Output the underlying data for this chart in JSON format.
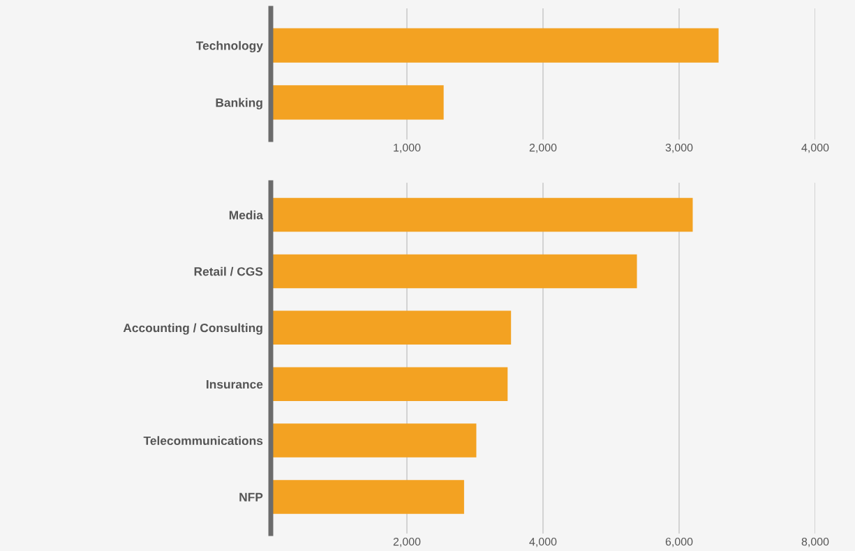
{
  "chart_data": [
    {
      "type": "bar",
      "orientation": "horizontal",
      "categories": [
        "Technology",
        "Banking"
      ],
      "values": [
        3290,
        1270
      ],
      "color": "#f3a222",
      "xlim": [
        0,
        4000
      ],
      "xticks": [
        {
          "value": 1000,
          "label": "1,000"
        },
        {
          "value": 2000,
          "label": "2,000"
        },
        {
          "value": 3000,
          "label": "3,000"
        },
        {
          "value": 4000,
          "label": "4,000"
        }
      ],
      "grid": "x"
    },
    {
      "type": "bar",
      "orientation": "horizontal",
      "categories": [
        "Media",
        "Retail / CGS",
        "Accounting / Consulting",
        "Insurance",
        "Telecommunications",
        "NFP"
      ],
      "values": [
        6200,
        5380,
        3530,
        3480,
        3020,
        2840
      ],
      "color": "#f3a222",
      "xlim": [
        0,
        8000
      ],
      "xticks": [
        {
          "value": 2000,
          "label": "2,000"
        },
        {
          "value": 4000,
          "label": "4,000"
        },
        {
          "value": 6000,
          "label": "6,000"
        },
        {
          "value": 8000,
          "label": "8,000"
        }
      ],
      "grid": "x"
    }
  ]
}
